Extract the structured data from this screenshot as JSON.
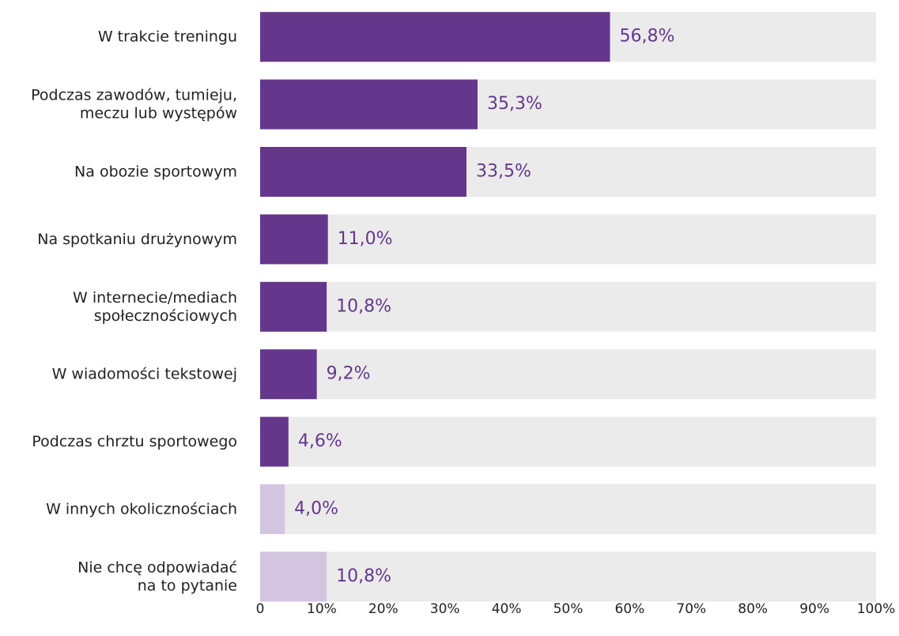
{
  "chart_data": {
    "type": "barh",
    "categories": [
      "W trakcie treningu",
      "Podczas zawodów, tumieju,\nmeczu lub występów",
      "Na obozie sportowym",
      "Na spotkaniu drużynowym",
      "W internecie/mediach\nspołecznościowych",
      "W wiadomości tekstowej",
      "Podczas chrztu sportowego",
      "W innych okolicznościach",
      "Nie chcę odpowiadać\nna to pytanie"
    ],
    "values": [
      56.8,
      35.3,
      33.5,
      11.0,
      10.8,
      9.2,
      4.6,
      4.0,
      10.8
    ],
    "value_labels": [
      "56,8%",
      "35,3%",
      "33,5%",
      "11,0%",
      "10,8%",
      "9,2%",
      "4,6%",
      "4,0%",
      "10,8%"
    ],
    "colors": [
      "#65378c",
      "#65378c",
      "#65378c",
      "#65378c",
      "#65378c",
      "#65378c",
      "#65378c",
      "#d3c5e0",
      "#d3c5e0"
    ],
    "label_color": "#65378c",
    "xlim": [
      0,
      100
    ],
    "xticks": [
      0,
      {
        "value": 10,
        "label": "10%"
      },
      {
        "value": 20,
        "label": "20%"
      },
      {
        "value": 30,
        "label": "30%"
      },
      {
        "value": 40,
        "label": "40%"
      },
      {
        "value": 50,
        "label": "50%"
      },
      {
        "value": 60,
        "label": "60%"
      },
      {
        "value": 70,
        "label": "70%"
      },
      {
        "value": 80,
        "label": "80%"
      },
      {
        "value": 90,
        "label": "90%"
      },
      {
        "value": 100,
        "label": "100%"
      }
    ]
  }
}
